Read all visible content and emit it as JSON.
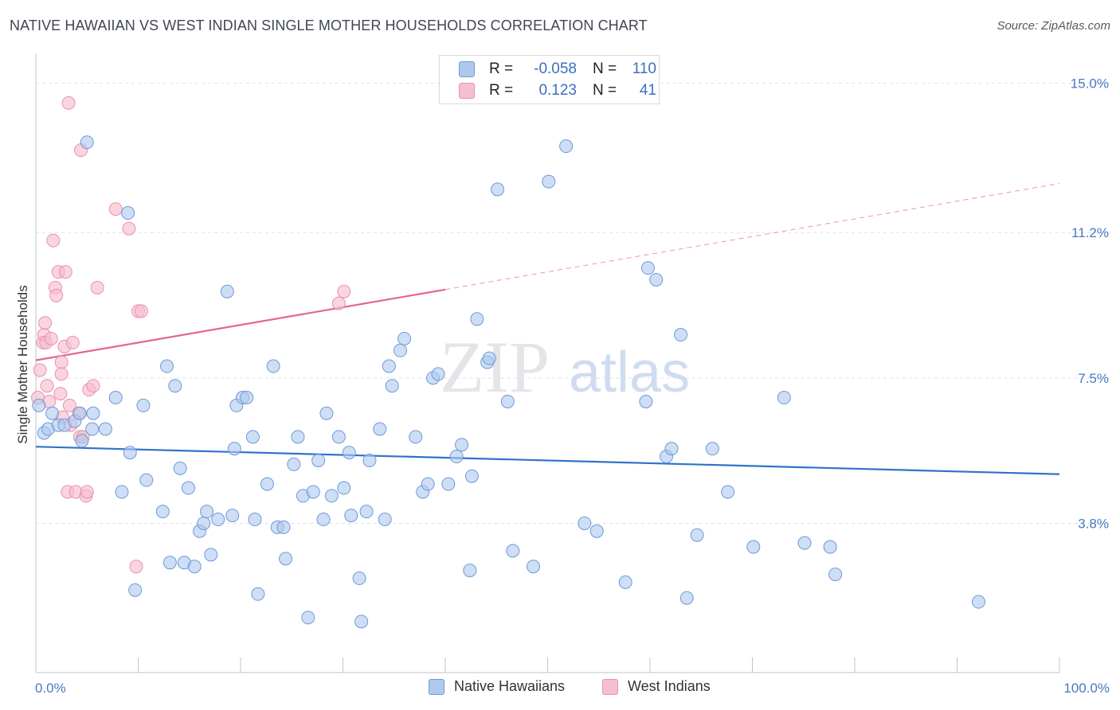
{
  "title": "NATIVE HAWAIIAN VS WEST INDIAN SINGLE MOTHER HOUSEHOLDS CORRELATION CHART",
  "source": "Source: ZipAtlas.com",
  "watermark": {
    "zip": "ZIP",
    "atlas": "atlas"
  },
  "legend": {
    "rows": [
      {
        "r_label": "R =",
        "r_value": "-0.058",
        "n_label": "N =",
        "n_value": "110"
      },
      {
        "r_label": "R =",
        "r_value": " 0.123",
        "n_label": "N =",
        "n_value": "41"
      }
    ]
  },
  "bottom_legend": {
    "blue": "Native Hawaiians",
    "pink": "West Indians"
  },
  "colors": {
    "blue_fill": "#aec8ee",
    "blue_stroke": "#6d9ad8",
    "blue_line": "#2f73cc",
    "pink_fill": "#f6bfd0",
    "pink_stroke": "#ec8fae",
    "pink_line": "#e4668f",
    "grid": "#dde1e6",
    "tick_label": "#4a78c2"
  },
  "chart_data": {
    "type": "scatter",
    "title": "NATIVE HAWAIIAN VS WEST INDIAN SINGLE MOTHER HOUSEHOLDS CORRELATION CHART",
    "xlabel": "",
    "ylabel": "Single Mother Households",
    "xlim": [
      0,
      100
    ],
    "ylim": [
      0,
      15.5
    ],
    "x_tick_labels": [
      "0.0%",
      "100.0%"
    ],
    "y_ticks": [
      3.8,
      7.5,
      11.2,
      15.0
    ],
    "y_tick_labels": [
      "3.8%",
      "7.5%",
      "11.2%",
      "15.0%"
    ],
    "grid": true,
    "legend_position": "top-center",
    "series": [
      {
        "name": "Native Hawaiians",
        "r": -0.058,
        "n": 110,
        "trend": {
          "x": [
            0,
            100
          ],
          "y": [
            5.75,
            5.05
          ]
        },
        "points": [
          [
            0.3,
            6.8
          ],
          [
            0.8,
            6.1
          ],
          [
            1.2,
            6.2
          ],
          [
            1.6,
            6.6
          ],
          [
            2.2,
            6.3
          ],
          [
            2.8,
            6.3
          ],
          [
            3.8,
            6.4
          ],
          [
            4.5,
            5.9
          ],
          [
            5.0,
            13.5
          ],
          [
            5.5,
            6.2
          ],
          [
            4.3,
            6.6
          ],
          [
            5.6,
            6.6
          ],
          [
            6.8,
            6.2
          ],
          [
            7.8,
            7.0
          ],
          [
            8.4,
            4.6
          ],
          [
            9.0,
            11.7
          ],
          [
            9.2,
            5.6
          ],
          [
            9.7,
            2.1
          ],
          [
            10.5,
            6.8
          ],
          [
            10.8,
            4.9
          ],
          [
            12.4,
            4.1
          ],
          [
            12.8,
            7.8
          ],
          [
            13.1,
            2.8
          ],
          [
            13.6,
            7.3
          ],
          [
            14.1,
            5.2
          ],
          [
            14.5,
            2.8
          ],
          [
            14.9,
            4.7
          ],
          [
            15.5,
            2.7
          ],
          [
            16.0,
            3.6
          ],
          [
            16.4,
            3.8
          ],
          [
            16.7,
            4.1
          ],
          [
            17.1,
            3.0
          ],
          [
            17.8,
            3.9
          ],
          [
            18.7,
            9.7
          ],
          [
            19.2,
            4.0
          ],
          [
            19.4,
            5.7
          ],
          [
            19.6,
            6.8
          ],
          [
            20.2,
            7.0
          ],
          [
            20.6,
            7.0
          ],
          [
            21.2,
            6.0
          ],
          [
            21.4,
            3.9
          ],
          [
            21.7,
            2.0
          ],
          [
            22.6,
            4.8
          ],
          [
            23.2,
            7.8
          ],
          [
            23.6,
            3.7
          ],
          [
            24.2,
            3.7
          ],
          [
            24.4,
            2.9
          ],
          [
            25.2,
            5.3
          ],
          [
            25.6,
            6.0
          ],
          [
            26.1,
            4.5
          ],
          [
            26.6,
            1.4
          ],
          [
            27.1,
            4.6
          ],
          [
            27.6,
            5.4
          ],
          [
            28.1,
            3.9
          ],
          [
            28.4,
            6.6
          ],
          [
            28.9,
            4.5
          ],
          [
            29.6,
            6.0
          ],
          [
            30.1,
            4.7
          ],
          [
            30.6,
            5.6
          ],
          [
            30.8,
            4.0
          ],
          [
            31.6,
            2.4
          ],
          [
            31.8,
            1.3
          ],
          [
            32.3,
            4.1
          ],
          [
            32.6,
            5.4
          ],
          [
            33.6,
            6.2
          ],
          [
            34.1,
            3.9
          ],
          [
            34.5,
            7.8
          ],
          [
            34.8,
            7.3
          ],
          [
            35.6,
            8.2
          ],
          [
            36.0,
            8.5
          ],
          [
            37.1,
            6.0
          ],
          [
            37.8,
            4.6
          ],
          [
            38.3,
            4.8
          ],
          [
            38.8,
            7.5
          ],
          [
            39.3,
            7.6
          ],
          [
            40.3,
            4.8
          ],
          [
            41.1,
            5.5
          ],
          [
            41.6,
            5.8
          ],
          [
            42.4,
            2.6
          ],
          [
            42.6,
            5.0
          ],
          [
            43.1,
            9.0
          ],
          [
            44.1,
            7.9
          ],
          [
            44.3,
            8.0
          ],
          [
            45.1,
            12.3
          ],
          [
            46.1,
            6.9
          ],
          [
            46.6,
            3.1
          ],
          [
            48.6,
            2.7
          ],
          [
            50.1,
            12.5
          ],
          [
            51.8,
            13.4
          ],
          [
            53.6,
            3.8
          ],
          [
            54.8,
            3.6
          ],
          [
            57.6,
            2.3
          ],
          [
            59.6,
            6.9
          ],
          [
            59.8,
            10.3
          ],
          [
            60.6,
            10.0
          ],
          [
            61.6,
            5.5
          ],
          [
            62.1,
            5.7
          ],
          [
            63.0,
            8.6
          ],
          [
            63.6,
            1.9
          ],
          [
            64.6,
            3.5
          ],
          [
            66.1,
            5.7
          ],
          [
            67.6,
            4.6
          ],
          [
            70.1,
            3.2
          ],
          [
            73.1,
            7.0
          ],
          [
            75.1,
            3.3
          ],
          [
            77.6,
            3.2
          ],
          [
            78.1,
            2.5
          ],
          [
            92.1,
            1.8
          ]
        ]
      },
      {
        "name": "West Indians",
        "r": 0.123,
        "n": 41,
        "trend": {
          "x": [
            0,
            40
          ],
          "y": [
            7.95,
            9.75
          ]
        },
        "trend_extension": {
          "x": [
            40,
            100
          ],
          "y": [
            9.75,
            12.45
          ]
        },
        "points": [
          [
            0.2,
            7.0
          ],
          [
            0.4,
            7.7
          ],
          [
            0.7,
            8.4
          ],
          [
            0.8,
            8.6
          ],
          [
            0.9,
            8.9
          ],
          [
            1.0,
            8.4
          ],
          [
            1.1,
            7.3
          ],
          [
            1.3,
            6.9
          ],
          [
            1.5,
            8.5
          ],
          [
            1.7,
            11.0
          ],
          [
            1.9,
            9.8
          ],
          [
            2.0,
            9.6
          ],
          [
            2.2,
            10.2
          ],
          [
            2.4,
            7.1
          ],
          [
            2.5,
            7.9
          ],
          [
            2.5,
            7.6
          ],
          [
            2.6,
            6.5
          ],
          [
            2.8,
            8.3
          ],
          [
            2.9,
            10.2
          ],
          [
            3.1,
            4.6
          ],
          [
            3.3,
            6.8
          ],
          [
            3.4,
            6.3
          ],
          [
            3.6,
            8.4
          ],
          [
            3.9,
            4.6
          ],
          [
            4.2,
            6.6
          ],
          [
            4.3,
            6.0
          ],
          [
            4.6,
            6.0
          ],
          [
            4.9,
            4.5
          ],
          [
            5.0,
            4.6
          ],
          [
            5.2,
            7.2
          ],
          [
            5.6,
            7.3
          ],
          [
            6.0,
            9.8
          ],
          [
            3.2,
            14.5
          ],
          [
            4.4,
            13.3
          ],
          [
            7.8,
            11.8
          ],
          [
            9.1,
            11.3
          ],
          [
            10.0,
            9.2
          ],
          [
            10.3,
            9.2
          ],
          [
            9.8,
            2.7
          ],
          [
            29.6,
            9.4
          ],
          [
            30.1,
            9.7
          ]
        ]
      }
    ]
  }
}
